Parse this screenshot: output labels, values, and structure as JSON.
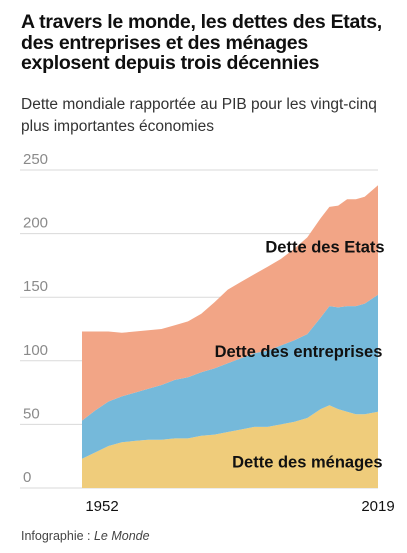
{
  "header": {
    "title": "A travers le monde, les dettes des Etats, des entreprises et des ménages explosent depuis trois décennies",
    "subtitle": "Dette mondiale rapportée au PIB pour les vingt-cinq plus importantes économies"
  },
  "footer": {
    "credit_label": "Infographie : ",
    "credit_source": "Le Monde"
  },
  "chart_data": {
    "type": "area",
    "stacked": true,
    "ylim": [
      0,
      250
    ],
    "yticks": [
      "0",
      "50",
      "100",
      "150",
      "200",
      "250"
    ],
    "xticks": [
      "1952",
      "2019"
    ],
    "x": [
      1952,
      1955,
      1958,
      1961,
      1964,
      1967,
      1970,
      1973,
      1976,
      1979,
      1982,
      1985,
      1988,
      1991,
      1994,
      1997,
      2000,
      2003,
      2006,
      2008,
      2010,
      2012,
      2014,
      2016,
      2019
    ],
    "series": [
      {
        "name": "Dette des ménages",
        "color": "#efcc7b",
        "values": [
          23,
          28,
          33,
          36,
          37,
          38,
          38,
          39,
          39,
          41,
          42,
          44,
          46,
          48,
          48,
          50,
          52,
          55,
          62,
          65,
          62,
          60,
          58,
          58,
          60
        ]
      },
      {
        "name": "Dette des entreprises",
        "color": "#75b9da",
        "values": [
          30,
          33,
          35,
          36,
          38,
          40,
          43,
          46,
          48,
          50,
          52,
          54,
          56,
          58,
          60,
          62,
          64,
          66,
          72,
          78,
          80,
          83,
          85,
          87,
          92
        ]
      },
      {
        "name": "Dette des Etats",
        "color": "#f2a586",
        "values": [
          70,
          62,
          55,
          50,
          48,
          46,
          44,
          43,
          44,
          46,
          52,
          58,
          60,
          62,
          66,
          68,
          72,
          76,
          78,
          78,
          80,
          84,
          84,
          84,
          86
        ]
      }
    ],
    "area_labels": [
      "Dette des Etats",
      "Dette des entreprises",
      "Dette des ménages"
    ]
  }
}
